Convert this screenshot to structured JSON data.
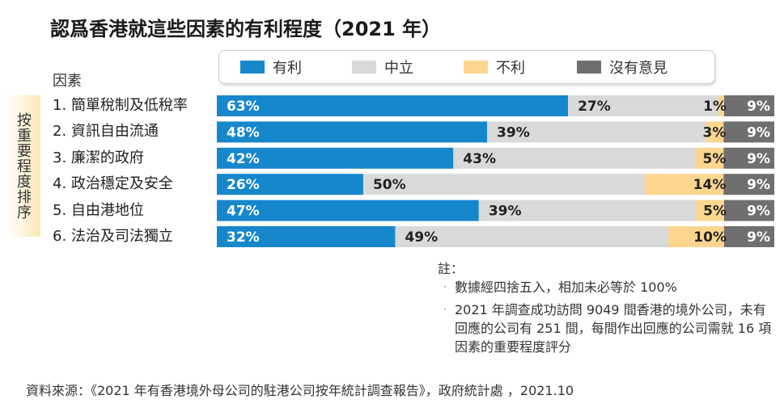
{
  "title": "認爲香港就這些因素的有利程度（2021 年）",
  "factor_header": "因素",
  "side_label": "按重要程度排序",
  "colors": {
    "favorable": "#1787cc",
    "neutral": "#d9d9d9",
    "unfavorable": "#fcd68f",
    "no_opinion": "#6f6f6f"
  },
  "chart_data": {
    "type": "bar",
    "orientation": "horizontal",
    "stacked": true,
    "legend_position": "top",
    "categories": [
      "1. 簡單稅制及低稅率",
      "2. 資訊自由流通",
      "3. 廉潔的政府",
      "4. 政治穩定及安全",
      "5. 自由港地位",
      "6. 法治及司法獨立"
    ],
    "series": [
      {
        "name": "有利",
        "values": [
          63,
          48,
          42,
          26,
          47,
          32
        ]
      },
      {
        "name": "中立",
        "values": [
          27,
          39,
          43,
          50,
          39,
          49
        ]
      },
      {
        "name": "不利",
        "values": [
          1,
          3,
          5,
          14,
          5,
          10
        ]
      },
      {
        "name": "沒有意見",
        "values": [
          9,
          9,
          9,
          9,
          9,
          9
        ]
      }
    ]
  },
  "notes": {
    "title": "註：",
    "items": [
      "數據經四捨五入，相加未必等於 100%",
      "2021 年調查成功訪問 9049 間香港的境外公司，未有回應的公司有 251 間，每間作出回應的公司需就 16 項因素的重要程度評分"
    ]
  },
  "source": "資料來源：《2021 年有香港境外母公司的駐港公司按年統計調查報告》，政府統計處 ，2021.10"
}
